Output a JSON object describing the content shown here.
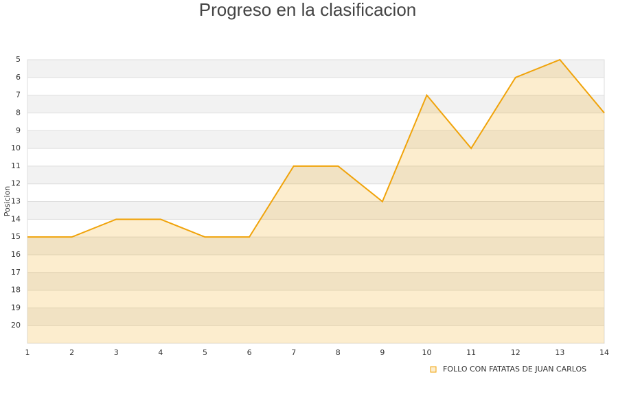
{
  "chart_data": {
    "type": "area",
    "title": "Progreso en la clasificacion",
    "y_label": "Posicion",
    "x": [
      1,
      2,
      3,
      4,
      5,
      6,
      7,
      8,
      9,
      10,
      11,
      12,
      13,
      14
    ],
    "xlim": [
      1,
      14
    ],
    "xticks": [
      1,
      2,
      3,
      4,
      5,
      6,
      7,
      8,
      9,
      10,
      11,
      12,
      13,
      14
    ],
    "ylim": [
      21,
      5
    ],
    "yticks": [
      5,
      6,
      7,
      8,
      9,
      10,
      11,
      12,
      13,
      14,
      15,
      16,
      17,
      18,
      19,
      20
    ],
    "grid": true,
    "series": [
      {
        "name": "FOLLO CON FATATAS DE JUAN CARLOS",
        "color": "#f0a30a",
        "values": [
          15,
          15,
          14,
          14,
          15,
          15,
          11,
          11,
          13,
          7,
          10,
          6,
          5,
          8
        ]
      }
    ]
  }
}
